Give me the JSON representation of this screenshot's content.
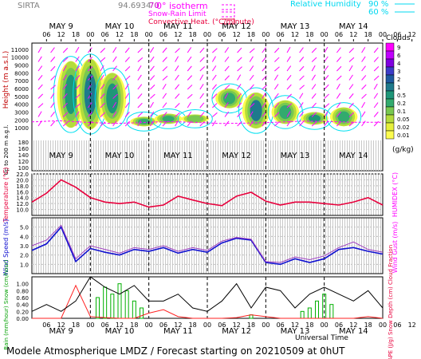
{
  "header": {
    "station": "SIRTA",
    "code": "94.6934",
    "ident": "70",
    "legend_isotherm": "0° isotherm",
    "legend_snow": "Snow-Rain Limit",
    "legend_conv": "Convective Heat. (°C/minute)",
    "legend_rh": "Relative Humidity",
    "rh90": "90 %",
    "rh60": "60 %"
  },
  "axis": {
    "days": [
      "MAY 9",
      "MAY 10",
      "MAY 11",
      "MAY 12",
      "MAY 13",
      "MAY 14"
    ],
    "hours": [
      "06",
      "12",
      "18",
      "00",
      "06",
      "12",
      "18",
      "00",
      "06",
      "12",
      "18",
      "00",
      "06",
      "12",
      "18",
      "00",
      "06",
      "12",
      "18",
      "00",
      "06",
      "12",
      "18",
      "00",
      "06",
      "12",
      "18"
    ],
    "xlabel": "Universal Time"
  },
  "footer": {
    "text": "Modele Atmospherique LMDZ / Forecast starting on 20210509 at 0hUT"
  },
  "colors": {
    "isotherm": "#ff00ff",
    "temperature": "#e8003c",
    "wind": "#1010d0",
    "rain": "#ff2020",
    "snow": "#00b000",
    "cape": "#000000",
    "rh": "#00e0f0",
    "wind_arrows": "#ff00ff"
  },
  "chart_data": [
    {
      "type": "heatmap",
      "title": "Clouds",
      "ylabel": "Height (m a.s.l.)",
      "ylabel2": "Up to 200 m a.g.l.",
      "y_ticks": [
        "11000",
        "10000",
        "9000",
        "8000",
        "7000",
        "6000",
        "5000",
        "4000",
        "3000",
        "2000",
        "1000",
        "0"
      ],
      "y_lower_ticks": [
        "180",
        "160",
        "140",
        "120",
        "100"
      ],
      "ylim": [
        0,
        11500
      ],
      "colorbar": {
        "title": "Clouds",
        "unit": "(g/kg)",
        "levels": [
          "9",
          "6",
          "4",
          "3",
          "2",
          "1",
          "0.5",
          "0.2",
          "0.1",
          "0.05",
          "0.02",
          "0.01"
        ],
        "colors": [
          "#ff00ff",
          "#c000ff",
          "#8000e0",
          "#3c3cc8",
          "#1e5aa0",
          "#1e7a8c",
          "#1e9678",
          "#32aa6e",
          "#78c850",
          "#b4dc3c",
          "#e6f03c",
          "#fcfc50"
        ]
      },
      "clouds": [
        {
          "t": 16,
          "b": 1000,
          "top": 9500,
          "q": 0.5
        },
        {
          "t": 24,
          "b": 800,
          "top": 9800,
          "q": 1
        },
        {
          "t": 33,
          "b": 1500,
          "top": 8000,
          "q": 0.5
        },
        {
          "t": 46,
          "b": 1200,
          "top": 2400,
          "q": 0.2
        },
        {
          "t": 56,
          "b": 1500,
          "top": 2800,
          "q": 0.2
        },
        {
          "t": 67,
          "b": 1600,
          "top": 2700,
          "q": 0.1
        },
        {
          "t": 81,
          "b": 3500,
          "top": 6000,
          "q": 0.3
        },
        {
          "t": 92,
          "b": 900,
          "top": 5500,
          "q": 1
        },
        {
          "t": 104,
          "b": 1500,
          "top": 4500,
          "q": 0.3
        },
        {
          "t": 116,
          "b": 1400,
          "top": 3000,
          "q": 0.5
        },
        {
          "t": 128,
          "b": 1200,
          "top": 3600,
          "q": 0.3
        }
      ],
      "isotherm_m": [
        1750,
        1900,
        1700,
        1550,
        1650,
        1800,
        1700,
        1550,
        1600,
        1700,
        1850,
        1800,
        1700,
        1700
      ]
    },
    {
      "type": "line",
      "ylabel": "Temperature (°C)",
      "ylabel_right": "HUMIDEX (°C)",
      "ylim": [
        8,
        22
      ],
      "y_ticks": [
        22,
        20,
        18,
        16,
        14,
        12,
        10
      ],
      "x_hours": [
        0,
        6,
        12,
        18,
        24,
        30,
        36,
        42,
        48,
        54,
        60,
        66,
        72,
        78,
        84,
        90,
        96,
        102,
        108,
        114,
        120,
        126,
        132,
        138,
        144
      ],
      "series": [
        {
          "values": [
            12.5,
            15.5,
            20.0,
            17.5,
            14.0,
            12.5,
            12.0,
            12.5,
            10.8,
            11.5,
            14.5,
            13.2,
            12.0,
            11.3,
            14.5,
            15.8,
            12.8,
            11.5,
            12.5,
            12.5,
            12.0,
            11.5,
            12.5,
            14.0,
            11.5
          ]
        }
      ]
    },
    {
      "type": "line",
      "ylabel": "Wind Speed (m/s)",
      "ylabel_right": "Wind Gust (m/s)",
      "ylim": [
        0,
        6
      ],
      "y_ticks": [
        5.0,
        4.0,
        3.0,
        2.0,
        1.0
      ],
      "x_hours": [
        0,
        6,
        12,
        18,
        24,
        30,
        36,
        42,
        48,
        54,
        60,
        66,
        72,
        78,
        84,
        90,
        96,
        102,
        108,
        114,
        120,
        126,
        132,
        138,
        144
      ],
      "series": [
        {
          "values": [
            2.5,
            3.2,
            5.0,
            1.3,
            2.7,
            2.3,
            2.0,
            2.6,
            2.4,
            2.8,
            2.2,
            2.6,
            2.3,
            3.3,
            3.8,
            3.6,
            1.2,
            1.0,
            1.6,
            1.2,
            1.6,
            2.6,
            2.8,
            2.4,
            2.1
          ]
        },
        {
          "values": [
            3.0,
            3.6,
            5.2,
            1.6,
            3.0,
            2.6,
            2.2,
            2.8,
            2.6,
            3.0,
            2.4,
            2.8,
            2.5,
            3.5,
            3.9,
            3.7,
            1.3,
            1.2,
            1.8,
            1.5,
            1.9,
            2.8,
            3.4,
            2.6,
            2.3
          ]
        }
      ]
    },
    {
      "type": "bar",
      "ylabel": "Rain (mm/hour) Snow (cm/hour)",
      "ylabel_right": "CAPE (J/g) Snow Depth (cm) Cloud Fraction",
      "ylim": [
        0,
        1.2
      ],
      "y_ticks": [
        1.0,
        0.8,
        0.6,
        0.4,
        0.2,
        0.0
      ],
      "x_hours": [
        0,
        6,
        12,
        18,
        24,
        30,
        36,
        42,
        48,
        54,
        60,
        66,
        72,
        78,
        84,
        90,
        96,
        102,
        108,
        114,
        120,
        126,
        132,
        138,
        144
      ],
      "series": [
        {
          "values": [
            0,
            0,
            0,
            0.95,
            0.05,
            0.02,
            0,
            0,
            0.15,
            0.25,
            0.05,
            0,
            0,
            0,
            0.02,
            0.1,
            0.05,
            0,
            0,
            0,
            0,
            0,
            0,
            0.05,
            0
          ]
        },
        {
          "values": [
            0.2,
            0.4,
            0.2,
            0.5,
            1.2,
            0.9,
            0.7,
            0.95,
            0.5,
            0.5,
            0.7,
            0.3,
            0.2,
            0.5,
            1.0,
            0.3,
            0.9,
            0.8,
            0.3,
            0.7,
            0.9,
            0.7,
            0.5,
            0.8,
            0.3
          ]
        }
      ],
      "bars": [
        {
          "h": 27,
          "v": 0.6
        },
        {
          "h": 30,
          "v": 0.9
        },
        {
          "h": 33,
          "v": 0.7
        },
        {
          "h": 36,
          "v": 1.0
        },
        {
          "h": 39,
          "v": 0.8
        },
        {
          "h": 42,
          "v": 0.5
        },
        {
          "h": 45,
          "v": 0.3
        },
        {
          "h": 90,
          "v": 0.1
        },
        {
          "h": 111,
          "v": 0.2
        },
        {
          "h": 114,
          "v": 0.3
        },
        {
          "h": 117,
          "v": 0.5
        },
        {
          "h": 120,
          "v": 0.7
        },
        {
          "h": 123,
          "v": 0.4
        }
      ]
    }
  ]
}
